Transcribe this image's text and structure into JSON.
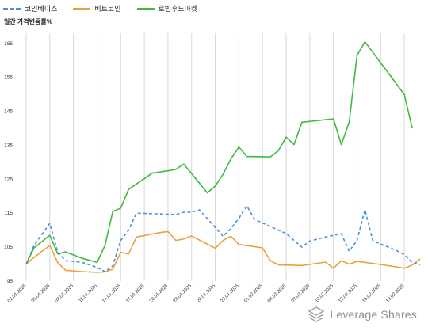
{
  "chart_data": {
    "type": "line",
    "title": "",
    "ylabel": "일간 가격변동률%",
    "xlabel": "",
    "ylim": [
      95,
      168
    ],
    "yticks": [
      95,
      105,
      115,
      125,
      135,
      145,
      155,
      165
    ],
    "grid": "vertical",
    "legend": "top-left",
    "x": [
      0,
      1,
      2,
      3,
      4,
      5,
      6,
      7,
      8,
      9,
      10,
      11,
      12,
      13,
      14,
      15,
      16,
      17,
      18,
      19,
      20,
      21,
      22,
      23,
      24,
      25,
      26,
      27,
      28,
      29,
      30,
      31,
      32,
      33,
      34,
      35,
      36,
      37,
      38
    ],
    "xticks": [
      {
        "x": 0,
        "label": "02.01.2025"
      },
      {
        "x": 3,
        "label": "05.01.2025"
      },
      {
        "x": 6,
        "label": "08.01.2025"
      },
      {
        "x": 9,
        "label": "11.01.2025"
      },
      {
        "x": 12,
        "label": "14.01.2025"
      },
      {
        "x": 15,
        "label": "17.01.2025"
      },
      {
        "x": 18,
        "label": "20.01.2025"
      },
      {
        "x": 21,
        "label": "23.01.2025"
      },
      {
        "x": 24,
        "label": "26.01.2025"
      },
      {
        "x": 27,
        "label": "29.01.2025"
      },
      {
        "x": 30,
        "label": "01.02.2025"
      },
      {
        "x": 33,
        "label": "04.02.2025"
      },
      {
        "x": 36,
        "label": "07.02.2025"
      },
      {
        "x": 39,
        "label": "10.02.2025"
      },
      {
        "x": 42,
        "label": "13.02.2025"
      },
      {
        "x": 45,
        "label": "16.02.2025"
      },
      {
        "x": 48,
        "label": "19.02.2025"
      }
    ],
    "series": [
      {
        "name": "코인베이스",
        "color": "#4a8fd9",
        "dash": true,
        "points": [
          [
            0,
            100
          ],
          [
            1,
            105.5
          ],
          [
            3,
            112
          ],
          [
            4,
            103.5
          ],
          [
            5,
            101
          ],
          [
            6,
            100.8
          ],
          [
            7,
            100.6
          ],
          [
            9,
            99
          ],
          [
            10,
            97.8
          ],
          [
            11,
            99.5
          ],
          [
            12,
            107
          ],
          [
            13,
            110
          ],
          [
            14,
            115
          ],
          [
            17,
            114.8
          ],
          [
            19,
            114.6
          ],
          [
            20,
            115.3
          ],
          [
            21,
            115.3
          ],
          [
            22,
            116
          ],
          [
            25,
            108.2
          ],
          [
            26,
            110.5
          ],
          [
            27,
            113.5
          ],
          [
            28,
            117.2
          ],
          [
            29,
            113.2
          ],
          [
            33,
            109
          ],
          [
            35,
            105
          ],
          [
            36,
            106.8
          ],
          [
            38,
            108
          ],
          [
            40,
            109
          ],
          [
            41,
            103.8
          ],
          [
            42,
            107
          ],
          [
            43,
            116
          ],
          [
            44,
            106.9
          ],
          [
            47,
            104
          ],
          [
            48,
            102.8
          ],
          [
            49,
            100.5
          ],
          [
            50,
            99.8
          ]
        ]
      },
      {
        "name": "비트코인",
        "color": "#e9a23b",
        "dash": false,
        "points": [
          [
            0,
            100
          ],
          [
            1,
            102
          ],
          [
            3,
            105.5
          ],
          [
            4,
            100.5
          ],
          [
            5,
            98.2
          ],
          [
            7,
            97.8
          ],
          [
            9,
            97.6
          ],
          [
            10,
            97.7
          ],
          [
            11,
            98.5
          ],
          [
            12,
            103.5
          ],
          [
            13,
            103
          ],
          [
            14,
            108
          ],
          [
            17,
            109.3
          ],
          [
            18,
            109.6
          ],
          [
            19,
            107
          ],
          [
            20,
            107.4
          ],
          [
            21,
            108.3
          ],
          [
            24,
            104.7
          ],
          [
            25,
            107
          ],
          [
            26,
            108.2
          ],
          [
            27,
            105.8
          ],
          [
            30,
            104.8
          ],
          [
            31,
            101
          ],
          [
            32,
            99.8
          ],
          [
            35,
            99.6
          ],
          [
            38,
            100.6
          ],
          [
            39,
            98.8
          ],
          [
            40,
            101
          ],
          [
            41,
            100
          ],
          [
            42,
            100.8
          ],
          [
            45,
            99.9
          ],
          [
            48,
            98.8
          ],
          [
            49,
            99.7
          ],
          [
            50,
            101.5
          ]
        ]
      },
      {
        "name": "로빈후드마켓",
        "color": "#3fba3f",
        "dash": false,
        "points": [
          [
            0,
            100
          ],
          [
            1,
            104.8
          ],
          [
            3,
            108.5
          ],
          [
            4,
            103
          ],
          [
            5,
            103.6
          ],
          [
            7,
            101.8
          ],
          [
            9,
            100.5
          ],
          [
            10,
            105.5
          ],
          [
            11,
            115.5
          ],
          [
            12,
            116.5
          ],
          [
            13,
            122
          ],
          [
            16,
            126.8
          ],
          [
            18,
            127.5
          ],
          [
            19,
            127.9
          ],
          [
            20,
            129.5
          ],
          [
            23,
            121
          ],
          [
            24,
            123
          ],
          [
            25,
            126.5
          ],
          [
            26,
            131
          ],
          [
            27,
            134.5
          ],
          [
            28,
            131.7
          ],
          [
            31,
            131.6
          ],
          [
            32,
            133.4
          ],
          [
            33,
            137.4
          ],
          [
            34,
            135.2
          ],
          [
            35,
            141.8
          ],
          [
            39,
            142.8
          ],
          [
            40,
            135.2
          ],
          [
            41,
            141.8
          ],
          [
            42,
            161.5
          ],
          [
            43,
            165.5
          ],
          [
            48,
            150
          ],
          [
            49,
            140
          ]
        ]
      }
    ]
  },
  "watermark": {
    "text": "Leverage Shares",
    "icon": "leverage-shares-logo-icon"
  }
}
